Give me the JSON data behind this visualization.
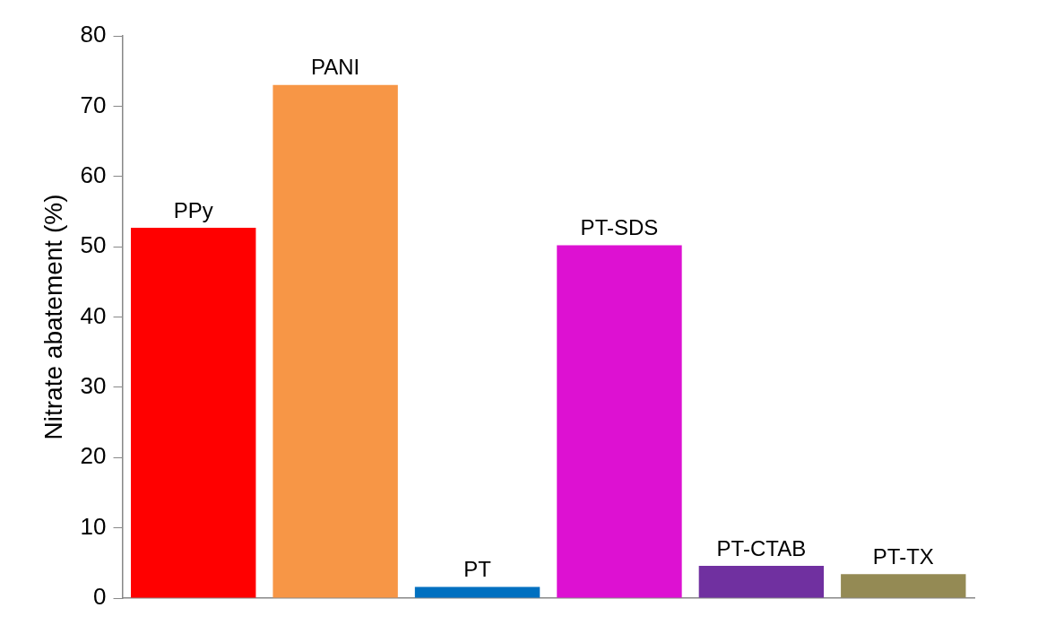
{
  "chart_data": {
    "type": "bar",
    "ylabel": "Nitrate abatement (%)",
    "categories": [
      "PPy",
      "PANI",
      "PT",
      "PT-SDS",
      "PT-CTAB",
      "PT-TX"
    ],
    "values": [
      52.7,
      73.0,
      1.6,
      50.2,
      4.6,
      3.4
    ],
    "colors": [
      "#ff0000",
      "#f79646",
      "#0070c0",
      "#dd11d2",
      "#7030a0",
      "#948a54"
    ],
    "ylim": [
      0,
      80
    ],
    "yticks": [
      0,
      10,
      20,
      30,
      40,
      50,
      60,
      70,
      80
    ],
    "grid": false,
    "legend": false,
    "tick_labels": "y"
  }
}
